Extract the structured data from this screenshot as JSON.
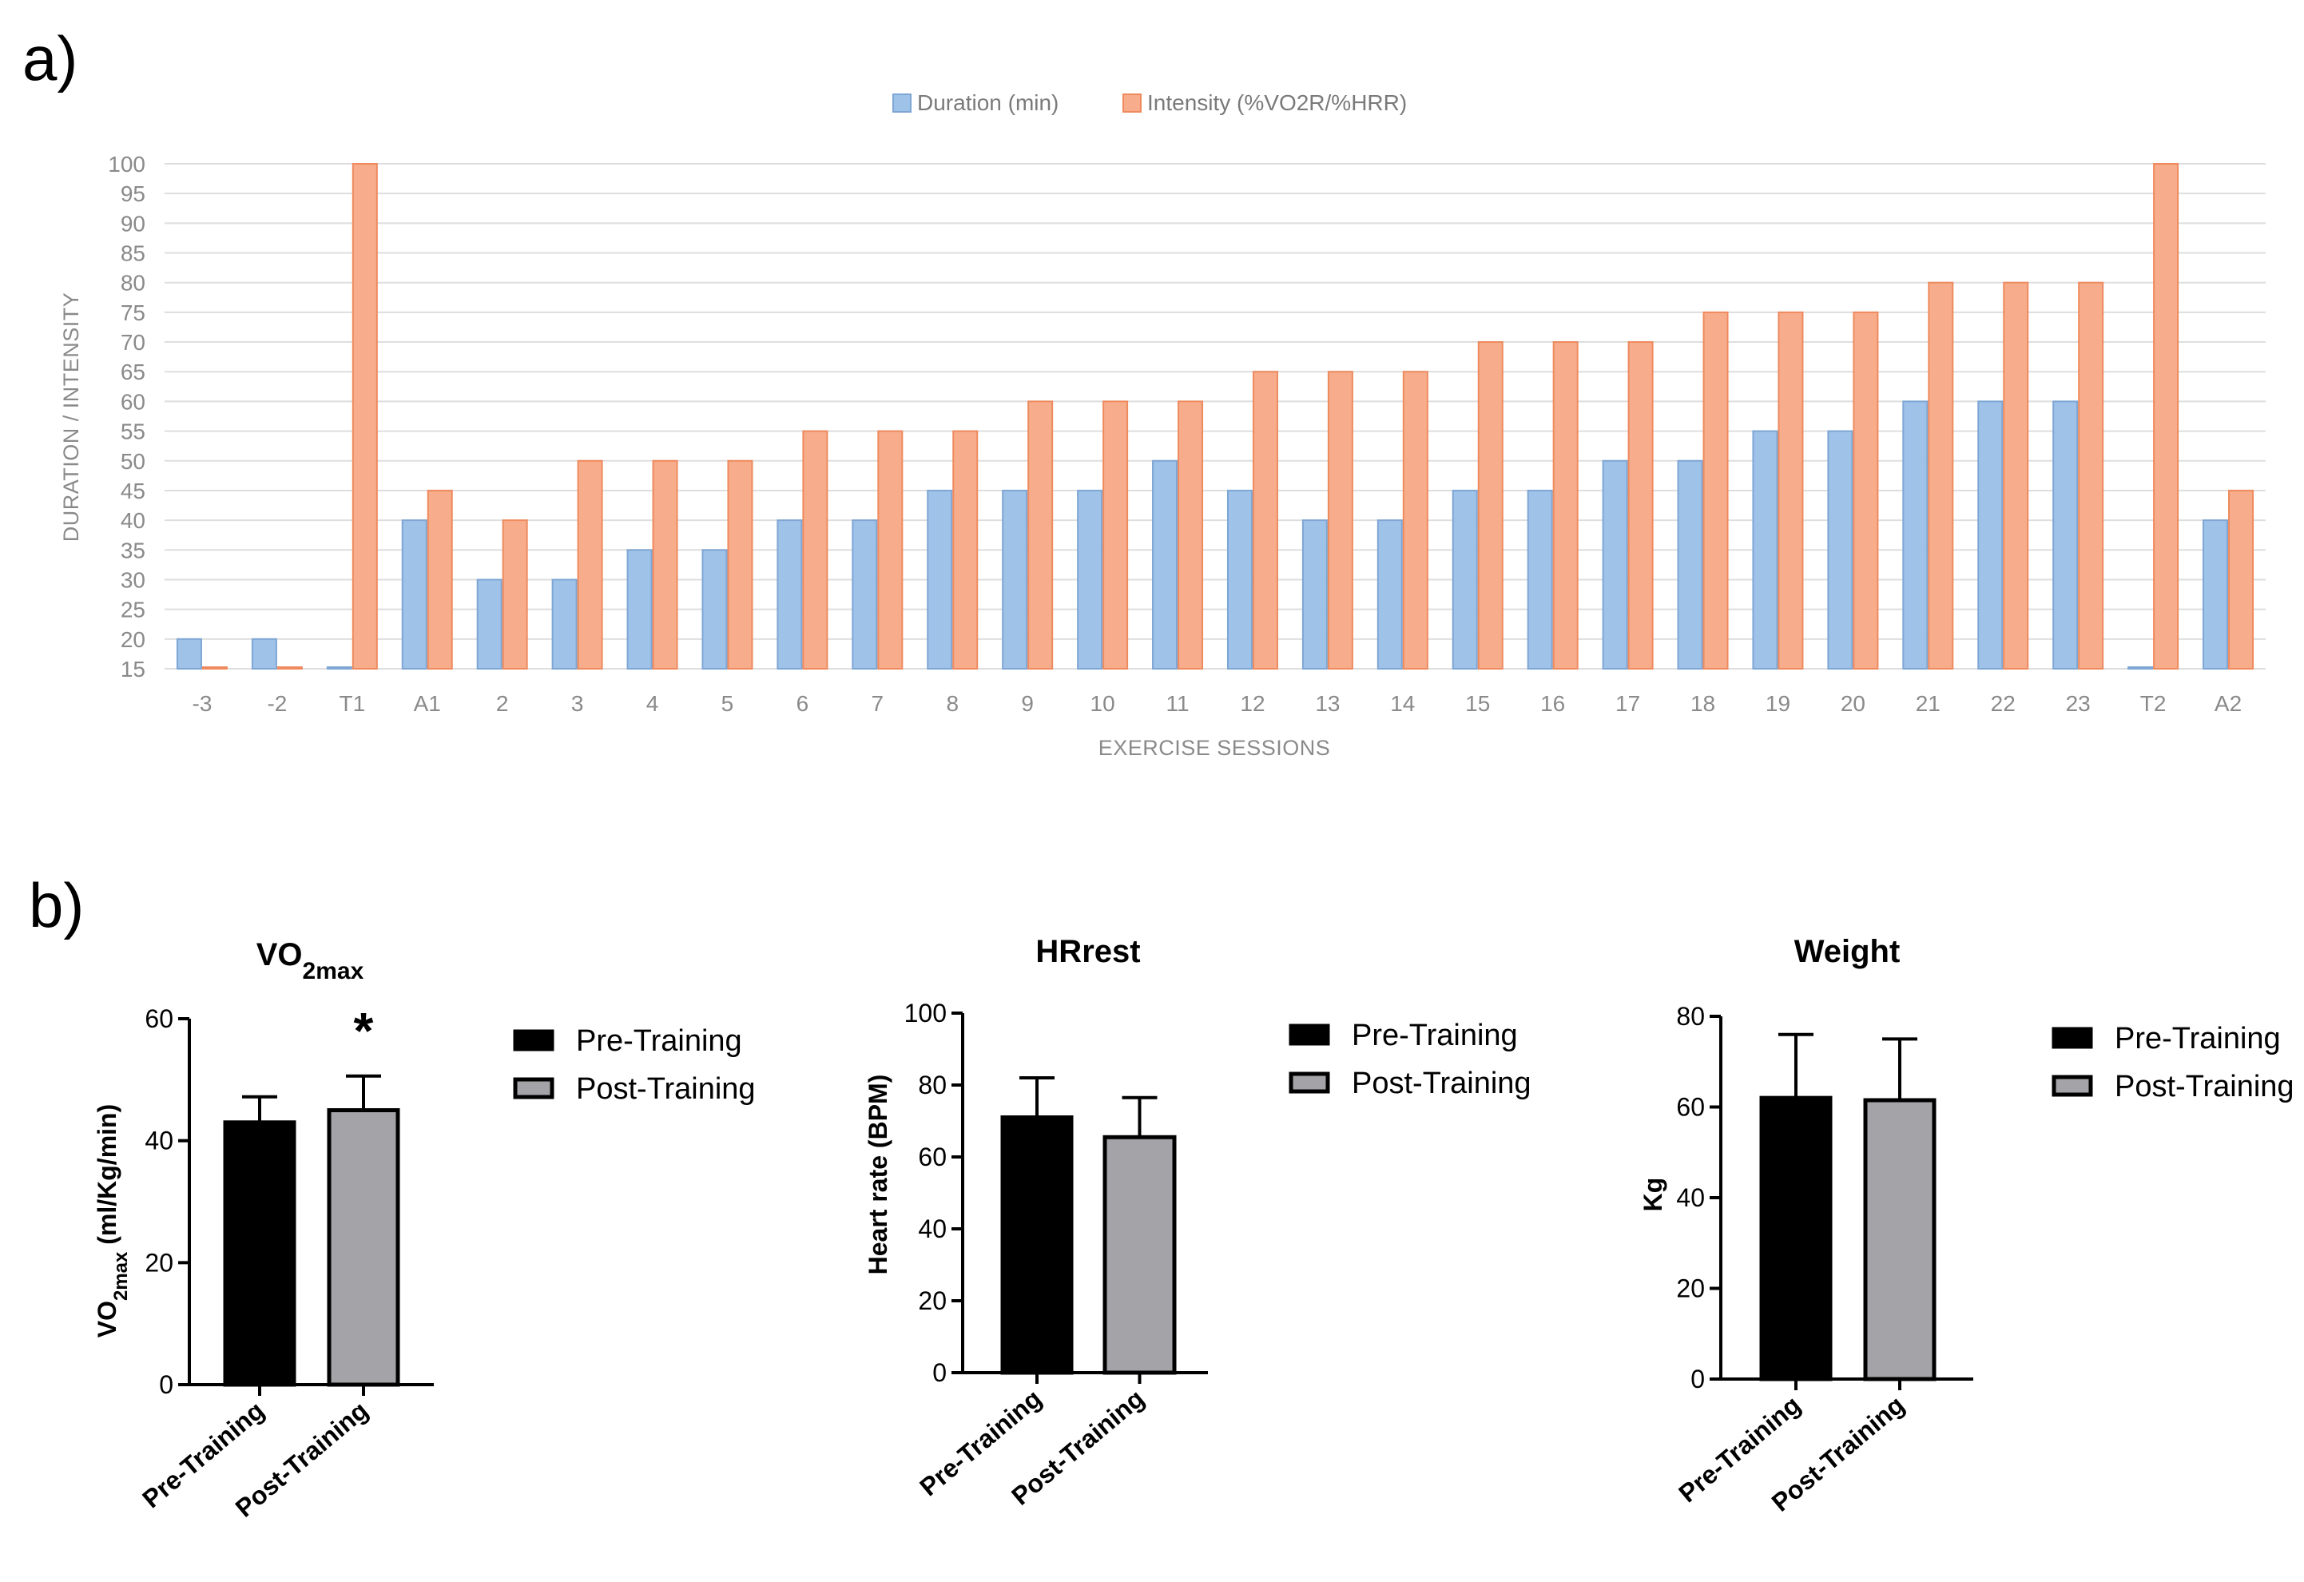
{
  "chart_data": [
    {
      "id": "a",
      "panel_label": "a)",
      "type": "bar",
      "title": "",
      "xlabel": "EXERCISE SESSIONS",
      "ylabel": "DURATION / INTENSITY",
      "ylim": [
        15,
        100
      ],
      "yticks": [
        15,
        20,
        25,
        30,
        35,
        40,
        45,
        50,
        55,
        60,
        65,
        70,
        75,
        80,
        85,
        90,
        95,
        100
      ],
      "grid": true,
      "legend_position": "top-center",
      "categories": [
        "-3",
        "-2",
        "T1",
        "A1",
        "2",
        "3",
        "4",
        "5",
        "6",
        "7",
        "8",
        "9",
        "10",
        "11",
        "12",
        "13",
        "14",
        "15",
        "16",
        "17",
        "18",
        "19",
        "20",
        "21",
        "22",
        "23",
        "T2",
        "A2"
      ],
      "series": [
        {
          "name": "Duration (min)",
          "color": "#9fc2e8",
          "edge": "#7ea6d4",
          "values": [
            20,
            20,
            15,
            40,
            30,
            30,
            35,
            35,
            40,
            40,
            45,
            45,
            45,
            50,
            45,
            40,
            40,
            45,
            45,
            50,
            50,
            55,
            55,
            60,
            60,
            60,
            15,
            40
          ]
        },
        {
          "name": "Intensity (%VO2R/%HRR)",
          "color": "#f7ad8c",
          "edge": "#ee8a5e",
          "values": [
            15,
            15,
            100,
            45,
            40,
            50,
            50,
            50,
            55,
            55,
            55,
            60,
            60,
            60,
            65,
            65,
            65,
            70,
            70,
            70,
            75,
            75,
            75,
            80,
            80,
            80,
            100,
            45
          ]
        }
      ]
    },
    {
      "id": "b1",
      "panel_label": "b)",
      "type": "bar",
      "title": "VO",
      "title_sub": "2max",
      "ylabel": "VO",
      "ylabel_sub": "2max",
      "ylabel_rest": " (ml/Kg/min)",
      "ylim": [
        0,
        60
      ],
      "yticks": [
        0,
        20,
        40,
        60
      ],
      "categories": [
        "Pre-Training",
        "Post-Training"
      ],
      "values": [
        43,
        45
      ],
      "errors": [
        4.2,
        5.6
      ],
      "colors": [
        "#000000",
        "#a3a3a8"
      ],
      "annotation": "*",
      "legend": [
        "Pre-Training",
        "Post-Training"
      ],
      "legend_position": "right"
    },
    {
      "id": "b2",
      "type": "bar",
      "title": "HRrest",
      "ylabel": "Heart rate (BPM)",
      "ylim": [
        0,
        100
      ],
      "yticks": [
        0,
        20,
        40,
        60,
        80,
        100
      ],
      "categories": [
        "Pre-Training",
        "Post-Training"
      ],
      "values": [
        71,
        65.5
      ],
      "errors": [
        11,
        11
      ],
      "colors": [
        "#000000",
        "#a3a3a8"
      ],
      "legend": [
        "Pre-Training",
        "Post-Training"
      ],
      "legend_position": "right"
    },
    {
      "id": "b3",
      "type": "bar",
      "title": "Weight",
      "ylabel": "Kg",
      "ylim": [
        0,
        80
      ],
      "yticks": [
        0,
        20,
        40,
        60,
        80
      ],
      "categories": [
        "Pre-Training",
        "Post-Training"
      ],
      "values": [
        62,
        61.5
      ],
      "errors": [
        14,
        13.5
      ],
      "colors": [
        "#000000",
        "#a3a3a8"
      ],
      "legend": [
        "Pre-Training",
        "Post-Training"
      ],
      "legend_position": "right"
    }
  ]
}
